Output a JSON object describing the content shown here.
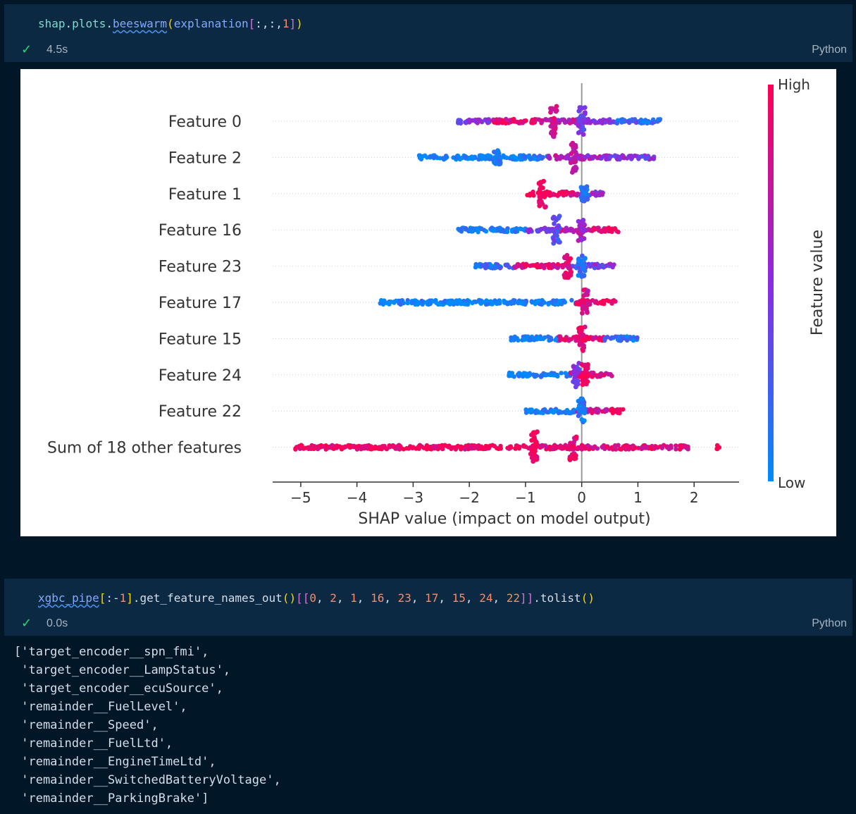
{
  "cells": [
    {
      "code_tokens": [
        {
          "text": "shap",
          "color": "#7fdbca"
        },
        {
          "text": ".",
          "color": "#d6deeb"
        },
        {
          "text": "plots",
          "color": "#7fdbca"
        },
        {
          "text": ".",
          "color": "#d6deeb"
        },
        {
          "text": "beeswarm",
          "color": "#82aaff"
        },
        {
          "text": "(",
          "color": "#ffd700"
        },
        {
          "text": "explanation",
          "color": "#82aaff"
        },
        {
          "text": "[",
          "color": "#da70d6"
        },
        {
          "text": ":,:,",
          "color": "#d6deeb"
        },
        {
          "text": "1",
          "color": "#f78c6c"
        },
        {
          "text": "]",
          "color": "#da70d6"
        },
        {
          "text": ")",
          "color": "#ffd700"
        }
      ],
      "status": "4.5s",
      "language": "Python"
    },
    {
      "code_tokens": [
        {
          "text": "xgbc_pipe",
          "color": "#82aaff"
        },
        {
          "text": "[",
          "color": "#ffd700"
        },
        {
          "text": ":-",
          "color": "#d6deeb"
        },
        {
          "text": "1",
          "color": "#f78c6c"
        },
        {
          "text": "]",
          "color": "#ffd700"
        },
        {
          "text": ".get_feature_names_out",
          "color": "#d6deeb"
        },
        {
          "text": "()",
          "color": "#ffd700"
        },
        {
          "text": "[[",
          "color": "#da70d6"
        },
        {
          "text": "0",
          "color": "#f78c6c"
        },
        {
          "text": ", ",
          "color": "#d6deeb"
        },
        {
          "text": "2",
          "color": "#f78c6c"
        },
        {
          "text": ", ",
          "color": "#d6deeb"
        },
        {
          "text": "1",
          "color": "#f78c6c"
        },
        {
          "text": ", ",
          "color": "#d6deeb"
        },
        {
          "text": "16",
          "color": "#f78c6c"
        },
        {
          "text": ", ",
          "color": "#d6deeb"
        },
        {
          "text": "23",
          "color": "#f78c6c"
        },
        {
          "text": ", ",
          "color": "#d6deeb"
        },
        {
          "text": "17",
          "color": "#f78c6c"
        },
        {
          "text": ", ",
          "color": "#d6deeb"
        },
        {
          "text": "15",
          "color": "#f78c6c"
        },
        {
          "text": ", ",
          "color": "#d6deeb"
        },
        {
          "text": "24",
          "color": "#f78c6c"
        },
        {
          "text": ", ",
          "color": "#d6deeb"
        },
        {
          "text": "22",
          "color": "#f78c6c"
        },
        {
          "text": "]]",
          "color": "#da70d6"
        },
        {
          "text": ".tolist",
          "color": "#d6deeb"
        },
        {
          "text": "()",
          "color": "#ffd700"
        }
      ],
      "status": "0.0s",
      "language": "Python"
    }
  ],
  "check_icon": "✓",
  "chart_data": {
    "type": "scatter",
    "xlabel": "SHAP value (impact on model output)",
    "ylabel": "",
    "xlim": [
      -5.5,
      2.8
    ],
    "xticks": [
      -5,
      -4,
      -3,
      -2,
      -1,
      0,
      1,
      2
    ],
    "xtick_labels": [
      "−5",
      "−4",
      "−3",
      "−2",
      "−1",
      "0",
      "1",
      "2"
    ],
    "colorbar": {
      "label": "Feature value",
      "high": "High",
      "low": "Low",
      "high_color": "#ff0052",
      "low_color": "#008bfb"
    },
    "categories": [
      "Feature 0",
      "Feature 2",
      "Feature 1",
      "Feature 16",
      "Feature 23",
      "Feature 17",
      "Feature 15",
      "Feature 24",
      "Feature 22",
      "Sum of 18 other features"
    ],
    "series": [
      {
        "name": "Feature 0",
        "min": -2.2,
        "max": 1.4,
        "segments": [
          [
            -2.2,
            -1.6,
            0.45
          ],
          [
            -1.6,
            -0.8,
            0.9
          ],
          [
            -0.8,
            0.0,
            0.7
          ],
          [
            0.0,
            0.6,
            0.5
          ],
          [
            0.6,
            1.4,
            0.2
          ]
        ],
        "clusters": [
          [
            -0.5,
            1.0,
            0.8
          ],
          [
            0.0,
            0.9,
            0.4
          ]
        ]
      },
      {
        "name": "Feature 2",
        "min": -2.9,
        "max": 1.3,
        "segments": [
          [
            -2.9,
            -1.6,
            0.02
          ],
          [
            -1.6,
            -0.6,
            0.08
          ],
          [
            -0.6,
            0.0,
            0.65
          ],
          [
            0.0,
            0.5,
            0.6
          ],
          [
            0.5,
            1.3,
            0.45
          ]
        ],
        "clusters": [
          [
            -0.15,
            1.0,
            0.7
          ],
          [
            -1.5,
            0.45,
            0.05
          ]
        ]
      },
      {
        "name": "Feature 1",
        "min": -1.0,
        "max": 0.4,
        "segments": [
          [
            -1.0,
            -0.2,
            1.0
          ],
          [
            -0.2,
            0.1,
            0.85
          ],
          [
            0.1,
            0.4,
            0.5
          ]
        ],
        "clusters": [
          [
            -0.7,
            0.95,
            1.0
          ],
          [
            0.05,
            0.5,
            0.1
          ]
        ]
      },
      {
        "name": "Feature 16",
        "min": -2.2,
        "max": 0.7,
        "segments": [
          [
            -2.2,
            -1.0,
            0.05
          ],
          [
            -1.0,
            -0.4,
            0.45
          ],
          [
            -0.4,
            0.0,
            0.7
          ],
          [
            0.0,
            0.7,
            0.85
          ]
        ],
        "clusters": [
          [
            -0.45,
            0.9,
            0.3
          ],
          [
            0.0,
            0.7,
            0.6
          ]
        ]
      },
      {
        "name": "Feature 23",
        "min": -1.9,
        "max": 0.6,
        "segments": [
          [
            -1.9,
            -1.2,
            0.15
          ],
          [
            -1.2,
            -0.2,
            0.85
          ],
          [
            -0.2,
            0.2,
            0.3
          ],
          [
            0.2,
            0.6,
            0.45
          ]
        ],
        "clusters": [
          [
            -0.25,
            0.75,
            0.9
          ],
          [
            0.0,
            0.8,
            0.15
          ]
        ]
      },
      {
        "name": "Feature 17",
        "min": -3.6,
        "max": 0.6,
        "segments": [
          [
            -3.6,
            -0.1,
            0.02
          ],
          [
            -0.1,
            0.6,
            0.95
          ]
        ],
        "clusters": [
          [
            0.05,
            0.9,
            0.8
          ]
        ]
      },
      {
        "name": "Feature 15",
        "min": -1.3,
        "max": 1.0,
        "segments": [
          [
            -1.3,
            -0.4,
            0.05
          ],
          [
            -0.4,
            0.4,
            0.85
          ],
          [
            0.4,
            1.0,
            0.15
          ]
        ],
        "clusters": [
          [
            0.0,
            0.85,
            0.9
          ]
        ]
      },
      {
        "name": "Feature 24",
        "min": -1.3,
        "max": 0.55,
        "segments": [
          [
            -1.3,
            -0.2,
            0.06
          ],
          [
            -0.2,
            0.55,
            0.85
          ]
        ],
        "clusters": [
          [
            -0.1,
            0.8,
            0.4
          ],
          [
            0.05,
            0.7,
            0.95
          ]
        ]
      },
      {
        "name": "Feature 22",
        "min": -1.05,
        "max": 0.75,
        "segments": [
          [
            -1.05,
            -0.1,
            0.06
          ],
          [
            -0.1,
            0.45,
            0.8
          ],
          [
            0.5,
            0.75,
            0.98
          ]
        ],
        "clusters": [
          [
            0.0,
            0.8,
            0.1
          ]
        ]
      },
      {
        "name": "Sum of 18 other features",
        "min": -5.1,
        "max": 2.45,
        "segments": [
          [
            -5.1,
            -0.9,
            0.96
          ],
          [
            -0.9,
            0.5,
            0.85
          ],
          [
            0.5,
            1.9,
            0.9
          ],
          [
            2.4,
            2.45,
            1.0
          ]
        ],
        "clusters": [
          [
            -0.85,
            1.0,
            1.0
          ],
          [
            -0.15,
            0.95,
            0.9
          ]
        ]
      }
    ],
    "grid": false,
    "legend": "right (colorbar)"
  },
  "output_lines": [
    "['target_encoder__spn_fmi',",
    " 'target_encoder__LampStatus',",
    " 'target_encoder__ecuSource',",
    " 'remainder__FuelLevel',",
    " 'remainder__Speed',",
    " 'remainder__FuelLtd',",
    " 'remainder__EngineTimeLtd',",
    " 'remainder__SwitchedBatteryVoltage',",
    " 'remainder__ParkingBrake']"
  ]
}
